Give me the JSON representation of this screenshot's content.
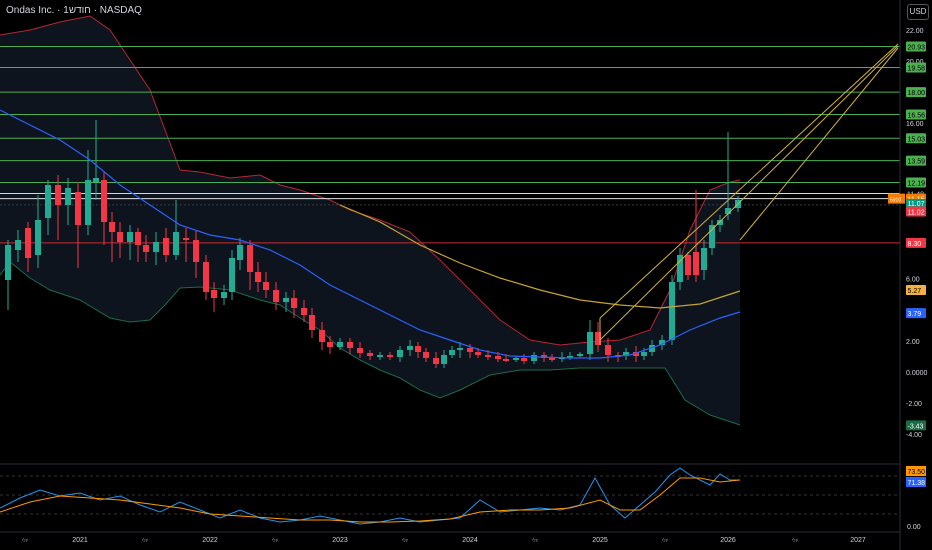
{
  "header": {
    "title": "Ondas Inc. · 1חודש · NASDAQ",
    "currency": "USD"
  },
  "colors": {
    "up": "#22ab94",
    "down": "#f23645",
    "bb_upper": "#b22833",
    "bb_lower": "#1b6b47",
    "bb_basis": "#2962ff",
    "ma": "#c8a32f",
    "hline": "#4caf50",
    "red_line": "#cc2a36",
    "rsi": "#2196f3",
    "rsi_ma": "#ff9800",
    "fan": "#d4b43a"
  },
  "chart_data": {
    "type": "candlestick",
    "x_ticks": [
      "2021",
      "2022",
      "2023",
      "2024",
      "2025",
      "2026",
      "2027"
    ],
    "x_minor_tick": "יולי",
    "y_ticks": [
      22.0,
      20.0,
      18.0,
      16.0,
      14.0,
      12.0,
      10.0,
      8.0,
      6.0,
      4.0,
      2.0,
      0.0,
      -2.0,
      -4.0
    ],
    "y_labels_shown": [
      "22.00",
      "20.00",
      "16.00",
      "6.00",
      "4.00",
      "2.00",
      "0.0000",
      "-2.00",
      "-4.00"
    ],
    "green_levels": [
      {
        "value": 20.93,
        "label": "20.93"
      },
      {
        "value": 19.58,
        "label": "19.58"
      },
      {
        "value": 18.0,
        "label": "18.00"
      },
      {
        "value": 16.56,
        "label": "16.56"
      },
      {
        "value": 15.03,
        "label": "15.03"
      },
      {
        "value": 13.59,
        "label": "13.59"
      },
      {
        "value": 12.19,
        "label": "12.19"
      }
    ],
    "white_level": {
      "value": 11.48,
      "label": "11.48"
    },
    "marker_11_15": {
      "value": 11.15,
      "label": "11.15",
      "prefix": "5910"
    },
    "last_price": {
      "value": 11.07,
      "label": "11.07",
      "countdown": "34 17:01"
    },
    "level_11_02": {
      "value": 11.02,
      "label": "11.02"
    },
    "red_level": {
      "value": 8.3,
      "label": "8.30"
    },
    "ma_label": {
      "value": 5.27,
      "label": "5.27"
    },
    "basis_label": {
      "value": 3.79,
      "label": "3.79"
    },
    "lower_label": {
      "value": -3.43,
      "label": "-3.43"
    },
    "rsi": {
      "labels": [
        "73.50",
        "71.38",
        "0.00"
      ],
      "rsi_value": 73.5,
      "rsi_ma_value": 71.38
    }
  }
}
